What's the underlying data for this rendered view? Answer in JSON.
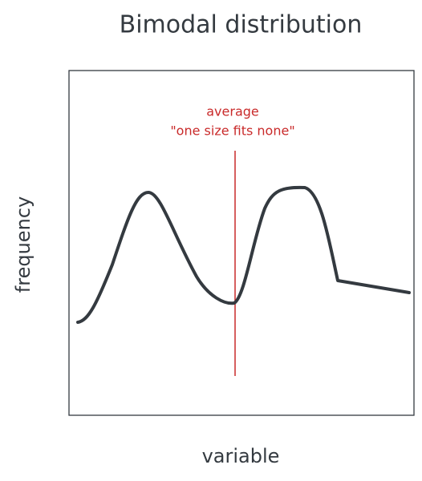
{
  "title": "Bimodal distribution",
  "annotation": {
    "lines": [
      "average",
      "\"one size fits none\""
    ]
  },
  "x_axis_label": "variable",
  "y_axis_label": "frequency"
}
